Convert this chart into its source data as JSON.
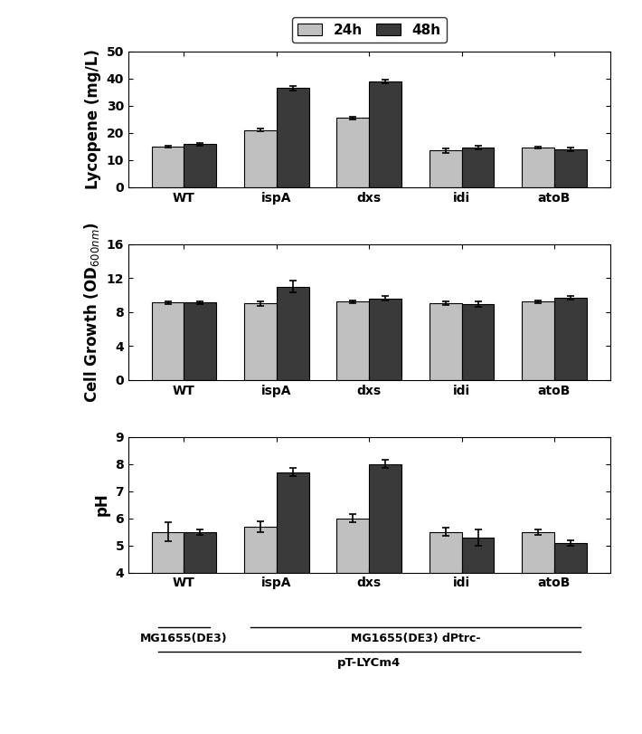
{
  "categories": [
    "WT",
    "ispA",
    "dxs",
    "idi",
    "atoB"
  ],
  "lycopene_24h": [
    15.0,
    21.0,
    25.5,
    13.5,
    14.5
  ],
  "lycopene_48h": [
    15.8,
    36.5,
    39.0,
    14.5,
    14.0
  ],
  "lycopene_err_24h": [
    0.3,
    0.5,
    0.5,
    0.8,
    0.4
  ],
  "lycopene_err_48h": [
    0.4,
    0.8,
    0.6,
    0.7,
    0.6
  ],
  "lycopene_ylim": [
    0,
    50
  ],
  "lycopene_yticks": [
    0,
    10,
    20,
    30,
    40,
    50
  ],
  "lycopene_ylabel": "Lycopene (mg/L)",
  "growth_24h": [
    9.1,
    9.0,
    9.2,
    9.0,
    9.2
  ],
  "growth_48h": [
    9.1,
    11.0,
    9.6,
    8.9,
    9.7
  ],
  "growth_err_24h": [
    0.15,
    0.25,
    0.2,
    0.2,
    0.15
  ],
  "growth_err_48h": [
    0.15,
    0.7,
    0.25,
    0.3,
    0.2
  ],
  "growth_ylim": [
    0,
    16
  ],
  "growth_yticks": [
    0,
    4,
    8,
    12,
    16
  ],
  "growth_ylabel": "Cell Growth (OD$_{600nm}$)",
  "ph_24h": [
    5.5,
    5.7,
    6.0,
    5.5,
    5.5
  ],
  "ph_48h": [
    5.5,
    7.7,
    8.0,
    5.3,
    5.1
  ],
  "ph_err_24h": [
    0.35,
    0.2,
    0.15,
    0.15,
    0.1
  ],
  "ph_err_48h": [
    0.1,
    0.15,
    0.15,
    0.3,
    0.1
  ],
  "ph_ylim": [
    4,
    9
  ],
  "ph_yticks": [
    4,
    5,
    6,
    7,
    8,
    9
  ],
  "ph_ylabel": "pH",
  "color_24h": "#c0c0c0",
  "color_48h": "#3a3a3a",
  "bar_width": 0.35,
  "axis_fontsize": 12,
  "tick_fontsize": 10,
  "legend_fontsize": 11,
  "annotation_fontsize": 9
}
